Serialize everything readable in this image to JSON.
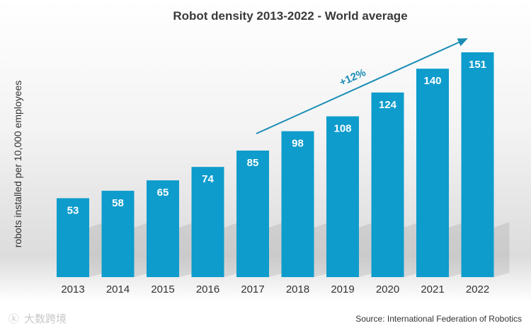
{
  "chart_data": {
    "type": "bar",
    "title": "Robot density 2013-2022 - World average",
    "ylabel": "robots installed per 10,000 employees",
    "xlabel": "",
    "categories": [
      "2013",
      "2014",
      "2015",
      "2016",
      "2017",
      "2018",
      "2019",
      "2020",
      "2021",
      "2022"
    ],
    "values": [
      53,
      58,
      65,
      74,
      85,
      98,
      108,
      124,
      140,
      151
    ],
    "ylim": [
      0,
      151
    ],
    "grid": false,
    "bar_color": "#0e9ccc",
    "annotation": {
      "text": "+12%",
      "from_category": "2017",
      "to_category": "2022",
      "color": "#1b8db5"
    },
    "source": "Source: International Federation of Robotics"
  },
  "watermark": "大数跨境"
}
